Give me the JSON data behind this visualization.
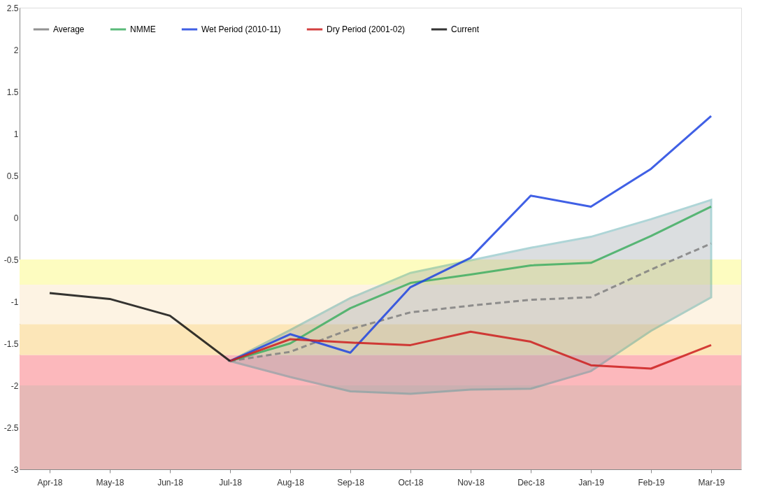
{
  "chart_data": {
    "type": "line",
    "categories": [
      "Apr-18",
      "May-18",
      "Jun-18",
      "Jul-18",
      "Aug-18",
      "Sep-18",
      "Oct-18",
      "Nov-18",
      "Dec-18",
      "Jan-19",
      "Feb-19",
      "Mar-19"
    ],
    "ylim": [
      -3,
      2.5
    ],
    "yticks": [
      -3,
      -2.5,
      -2,
      -1.5,
      -1,
      -0.5,
      0,
      0.5,
      1,
      1.5,
      2,
      2.5
    ],
    "grid": false,
    "legend": "top left",
    "bands": [
      {
        "axis": "y",
        "from": -0.8,
        "to": -0.5,
        "color": "#fdfcc0"
      },
      {
        "axis": "y",
        "from": -1.27,
        "to": -0.8,
        "color": "#fdf3e3"
      },
      {
        "axis": "y",
        "from": -1.64,
        "to": -1.27,
        "color": "#fce6b8"
      },
      {
        "axis": "y",
        "from": -2.0,
        "to": -1.64,
        "color": "#fcb8bc"
      },
      {
        "axis": "y",
        "from": -3,
        "to": -2.0,
        "color": "#e6b8b6"
      }
    ],
    "series": [
      {
        "name": "Average",
        "color": "#808080",
        "line_style": "dashed",
        "values": [
          null,
          null,
          null,
          -1.71,
          -1.6,
          -1.33,
          -1.13,
          -1.05,
          -0.98,
          -0.95,
          -0.62,
          -0.31
        ]
      },
      {
        "name": "NMME",
        "color": "#3fae62",
        "values": [
          null,
          null,
          null,
          -1.71,
          -1.5,
          -1.08,
          -0.78,
          -0.68,
          -0.57,
          -0.54,
          -0.22,
          0.13
        ],
        "lower": [
          null,
          null,
          null,
          -1.71,
          -1.9,
          -2.07,
          -2.1,
          -2.05,
          -2.04,
          -1.83,
          -1.35,
          -0.95
        ],
        "upper": [
          null,
          null,
          null,
          -1.71,
          -1.34,
          -0.96,
          -0.66,
          -0.51,
          -0.36,
          -0.23,
          -0.02,
          0.21
        ]
      },
      {
        "name": "Wet Period (2010-11)",
        "color": "#1f44e0",
        "values": [
          null,
          null,
          null,
          -1.71,
          -1.39,
          -1.61,
          -0.83,
          -0.48,
          0.26,
          0.13,
          0.58,
          1.21
        ]
      },
      {
        "name": "Dry Period (2001-02)",
        "color": "#cc1f1f",
        "values": [
          null,
          null,
          null,
          -1.71,
          -1.45,
          -1.49,
          -1.52,
          -1.36,
          -1.48,
          -1.76,
          -1.8,
          -1.52
        ]
      },
      {
        "name": "Current",
        "color": "#111111",
        "values": [
          -0.9,
          -0.97,
          -1.17,
          -1.71,
          null,
          null,
          null,
          null,
          null,
          null,
          null,
          null
        ]
      }
    ]
  }
}
